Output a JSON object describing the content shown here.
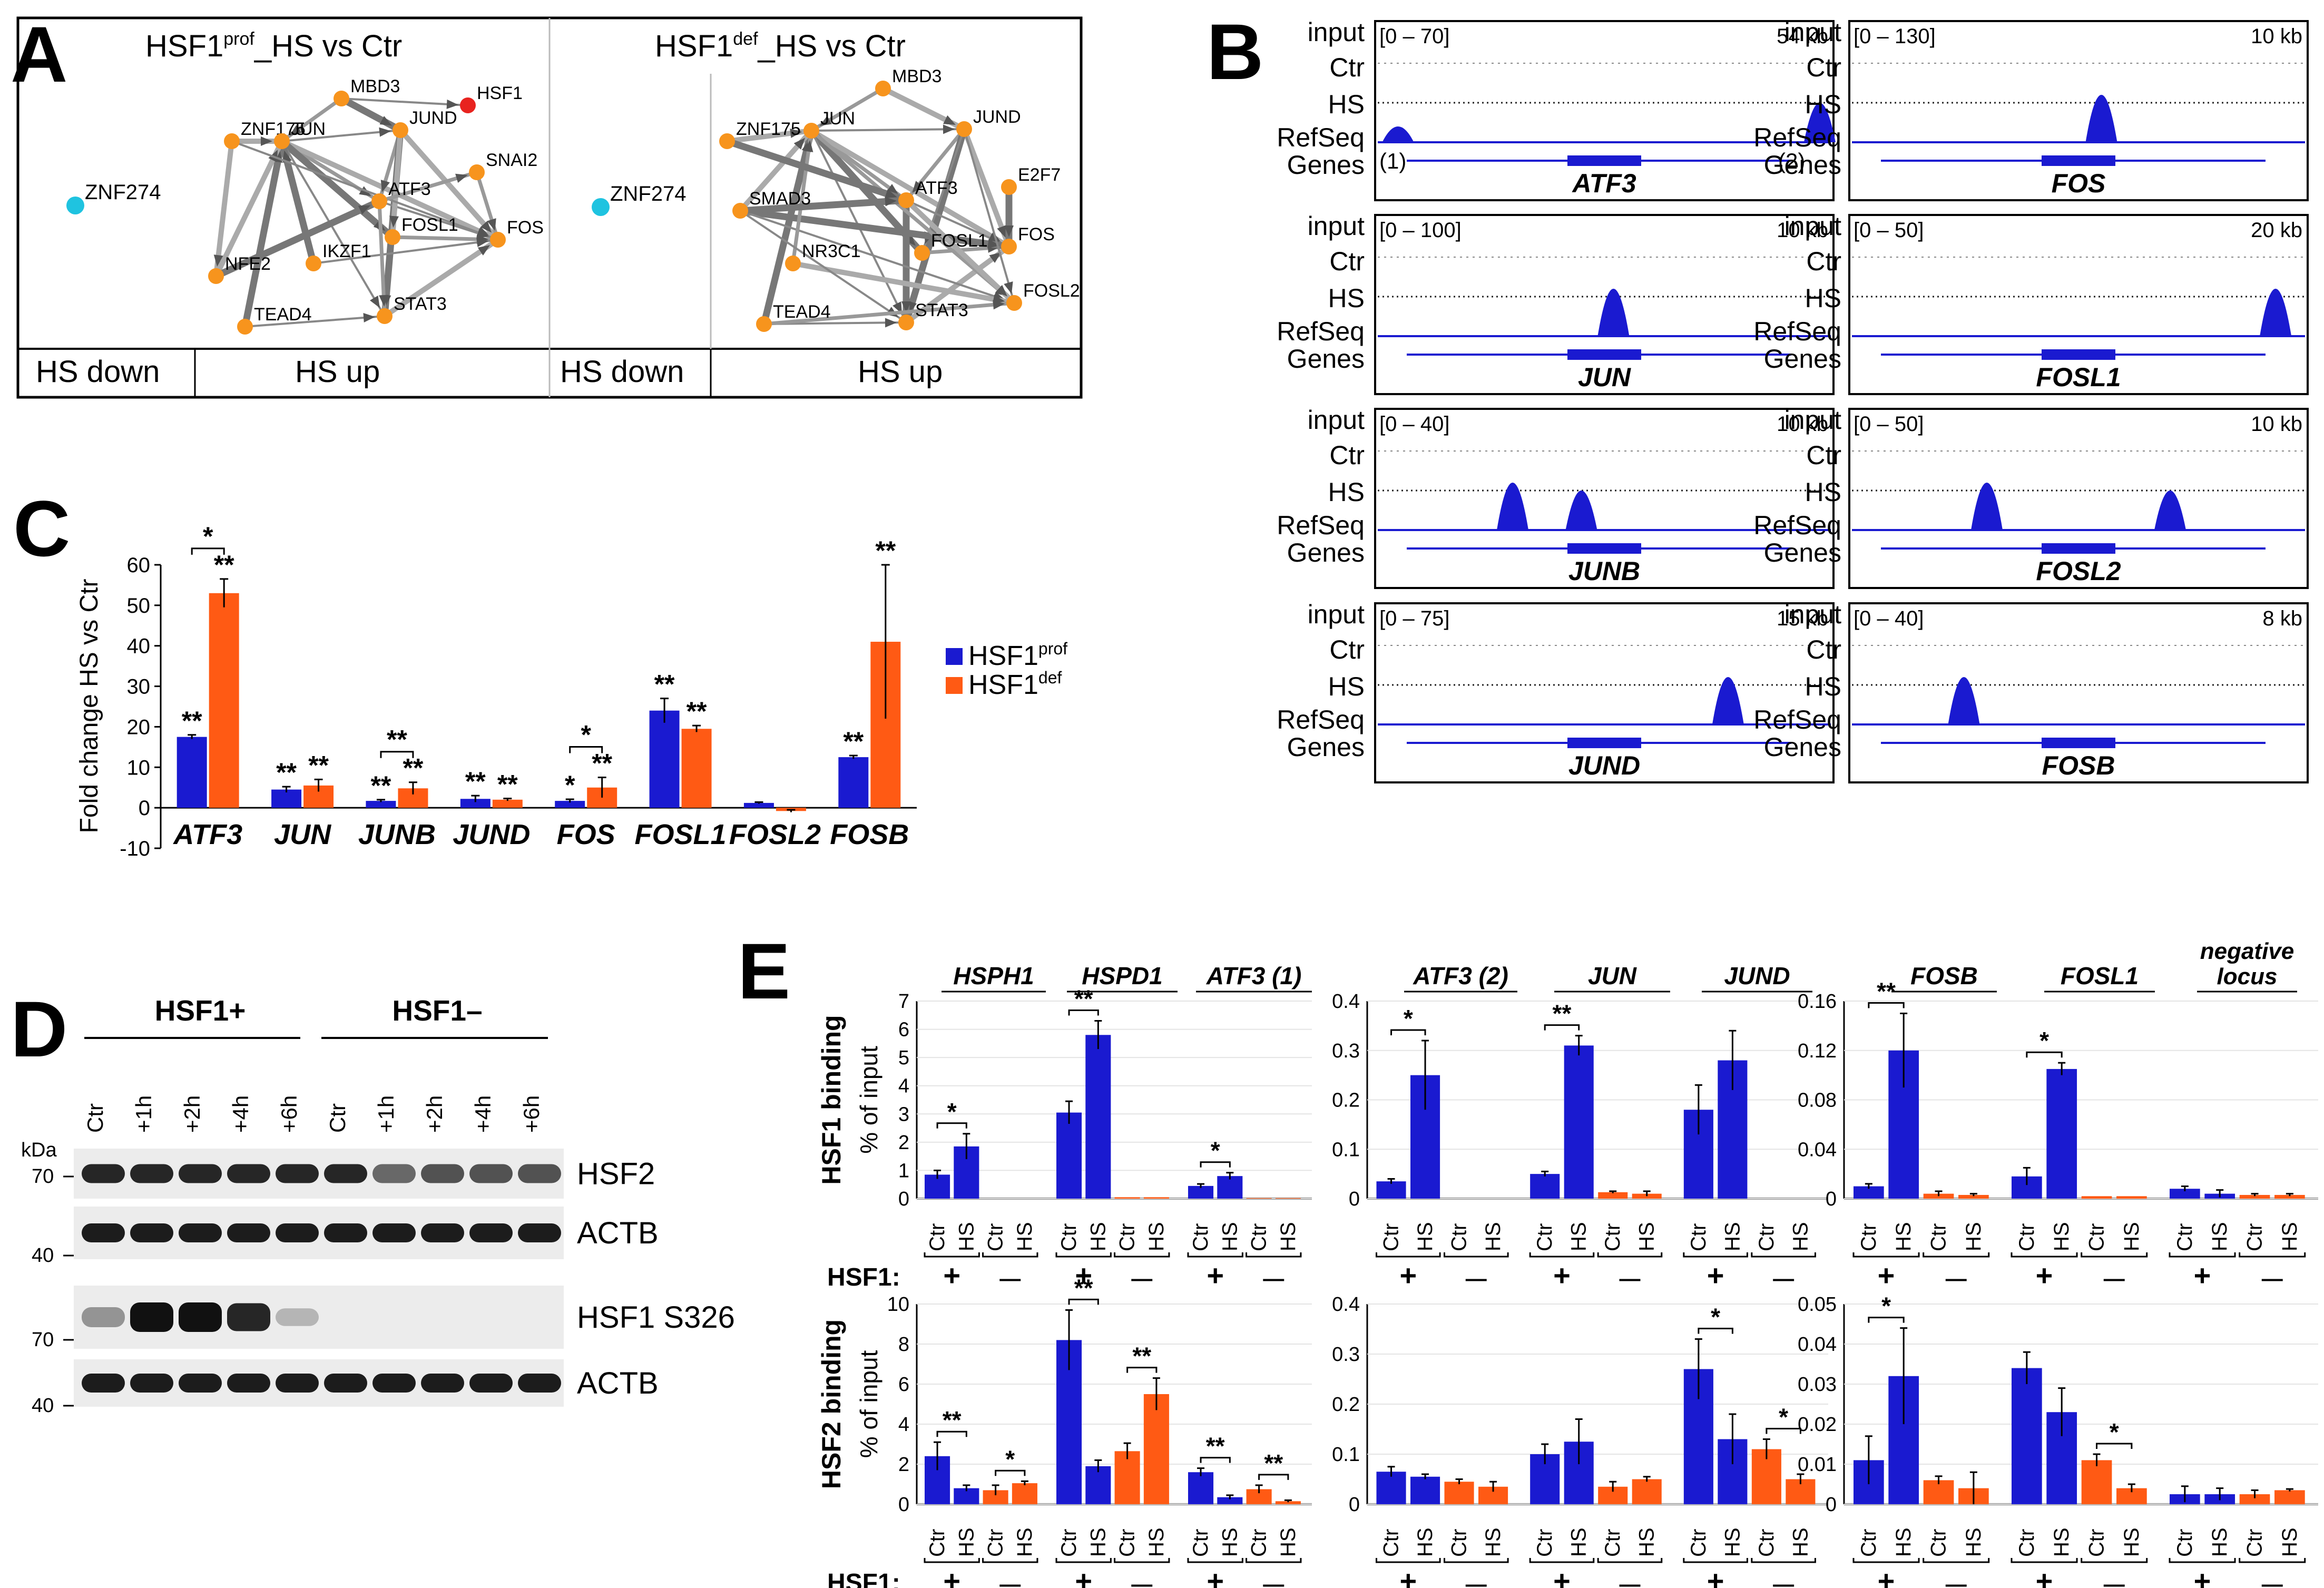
{
  "colors": {
    "blue": "#1a1ad0",
    "orange": "#ff5a14",
    "node": "#f7941d",
    "node_hsf1": "#e8231f",
    "node_down": "#1fc3e0",
    "track": "#1a1ad0"
  },
  "panelA": {
    "letter": "A",
    "left": {
      "title_base": "HSF1",
      "title_sup": "prof",
      "title_tail": "_HS vs Ctr"
    },
    "right": {
      "title_base": "HSF1",
      "title_sup": "def",
      "title_tail": "_HS vs Ctr"
    },
    "footer": {
      "down": "HS down",
      "up": "HS up"
    },
    "nodes_left": [
      "MBD3",
      "HSF1",
      "ZNF175",
      "JUN",
      "JUND",
      "SNAI2",
      "ATF3",
      "FOSL1",
      "FOS",
      "NFE2",
      "IKZF1",
      "TEAD4",
      "STAT3"
    ],
    "nodes_right": [
      "MBD3",
      "ZNF175",
      "JUN",
      "JUND",
      "E2F7",
      "SMAD3",
      "ATF3",
      "FOSL1",
      "FOS",
      "NR3C1",
      "FOSL2",
      "TEAD4",
      "STAT3"
    ],
    "down_node": "ZNF274"
  },
  "panelB": {
    "letter": "B",
    "track_labels": [
      "input",
      "Ctr",
      "HS",
      "RefSeq",
      "Genes"
    ],
    "loci": [
      {
        "gene": "ATF3",
        "range": "[0 – 70]",
        "size": "54 kb"
      },
      {
        "gene": "FOS",
        "range": "[0 – 130]",
        "size": "10 kb"
      },
      {
        "gene": "JUN",
        "range": "[0 – 100]",
        "size": "10 kb"
      },
      {
        "gene": "FOSL1",
        "range": "[0 – 50]",
        "size": "20 kb"
      },
      {
        "gene": "JUNB",
        "range": "[0 – 40]",
        "size": "10 kb"
      },
      {
        "gene": "FOSL2",
        "range": "[0 – 50]",
        "size": "10 kb"
      },
      {
        "gene": "JUND",
        "range": "[0 – 75]",
        "size": "15 kb"
      },
      {
        "gene": "FOSB",
        "range": "[0 – 40]",
        "size": "8 kb"
      }
    ],
    "atf3_sites": [
      "(1)",
      "(2)"
    ]
  },
  "panelC": {
    "letter": "C",
    "chart_data": {
      "type": "bar",
      "ylabel": "Fold change HS vs Ctr",
      "ylim": [
        -10,
        60
      ],
      "yticks": [
        -10,
        0,
        10,
        20,
        30,
        40,
        50,
        60
      ],
      "categories": [
        "ATF3",
        "JUN",
        "JUNB",
        "JUND",
        "FOS",
        "FOSL1",
        "FOSL2",
        "FOSB"
      ],
      "series": [
        {
          "name": "HSF1",
          "sup": "prof",
          "values": [
            17.5,
            4.5,
            1.7,
            2.2,
            1.7,
            24,
            1.2,
            12.5
          ],
          "errors": [
            0.5,
            0.7,
            0.3,
            0.8,
            0.4,
            3,
            0.2,
            0.4
          ],
          "stars": [
            "**",
            "**",
            "**",
            "**",
            "*",
            "**",
            "",
            "**"
          ]
        },
        {
          "name": "HSF1",
          "sup": "def",
          "values": [
            53,
            5.5,
            4.8,
            2,
            5,
            19.5,
            -0.8,
            41
          ],
          "errors": [
            3.5,
            1.5,
            1.5,
            0.3,
            2.5,
            0.8,
            0.3,
            19
          ],
          "stars": [
            "**",
            "**",
            "**",
            "**",
            "**",
            "**",
            "",
            "**"
          ]
        }
      ],
      "brackets": [
        {
          "category": "ATF3",
          "label": "*"
        },
        {
          "category": "JUNB",
          "label": "**"
        },
        {
          "category": "FOS",
          "label": "*"
        }
      ]
    }
  },
  "panelD": {
    "letter": "D",
    "groups": [
      "HSF1+",
      "HSF1–"
    ],
    "lanes": [
      "Ctr",
      "+1h",
      "+2h",
      "+4h",
      "+6h",
      "Ctr",
      "+1h",
      "+2h",
      "+4h",
      "+6h"
    ],
    "kda_label": "kDa",
    "markers": [
      "70",
      "40",
      "70",
      "40"
    ],
    "blots": [
      "HSF2",
      "ACTB",
      "HSF1 S326",
      "ACTB"
    ]
  },
  "panelE": {
    "letter": "E",
    "row_labels": [
      {
        "title": "HSF1 binding",
        "sub": "% of input"
      },
      {
        "title": "HSF2 binding",
        "sub": "% of input"
      }
    ],
    "genes": [
      "HSPH1",
      "HSPD1",
      "ATF3 (1)",
      "ATF3 (2)",
      "JUN",
      "JUND",
      "FOSB",
      "FOSL1"
    ],
    "negative_locus": [
      "negative",
      "locus"
    ],
    "bar_labels": [
      "Ctr",
      "HS"
    ],
    "hsf1_label": "HSF1:",
    "plus": "+",
    "minus": "—",
    "chart_data": [
      {
        "type": "bar",
        "panel": "HSF1 binding 1",
        "ylim": [
          0,
          7
        ],
        "yticks": [
          0,
          1,
          2,
          3,
          4,
          5,
          6,
          7
        ],
        "genes": [
          "HSPH1",
          "HSPD1",
          "ATF3 (1)"
        ],
        "values": [
          [
            0.85,
            1.85,
            0,
            0
          ],
          [
            3.05,
            5.8,
            0.05,
            0.05
          ],
          [
            0.45,
            0.8,
            0.02,
            0.02
          ]
        ],
        "errors": [
          [
            0.15,
            0.45,
            0,
            0
          ],
          [
            0.4,
            0.5,
            0,
            0
          ],
          [
            0.07,
            0.12,
            0,
            0
          ]
        ],
        "sig": [
          "*",
          "**",
          "*"
        ]
      },
      {
        "type": "bar",
        "panel": "HSF1 binding 2",
        "ylim": [
          0,
          0.4
        ],
        "yticks": [
          0,
          0.1,
          0.2,
          0.3,
          0.4
        ],
        "genes": [
          "ATF3 (2)",
          "JUN",
          "JUND"
        ],
        "values": [
          [
            0.035,
            0.25,
            0,
            0
          ],
          [
            0.05,
            0.31,
            0.013,
            0.01
          ],
          [
            0.18,
            0.28,
            0,
            0
          ]
        ],
        "errors": [
          [
            0.005,
            0.07,
            0,
            0
          ],
          [
            0.005,
            0.02,
            0.002,
            0.005
          ],
          [
            0.05,
            0.06,
            0,
            0
          ]
        ],
        "sig": [
          "*",
          "**",
          ""
        ]
      },
      {
        "type": "bar",
        "panel": "HSF1 binding 3",
        "ylim": [
          0,
          0.16
        ],
        "yticks": [
          0,
          0.04,
          0.08,
          0.12,
          0.16
        ],
        "genes": [
          "FOSB",
          "FOSL1",
          "negative locus"
        ],
        "values": [
          [
            0.01,
            0.12,
            0.004,
            0.003
          ],
          [
            0.018,
            0.105,
            0.002,
            0.002
          ],
          [
            0.008,
            0.004,
            0.003,
            0.003
          ]
        ],
        "errors": [
          [
            0.002,
            0.03,
            0.002,
            0.001
          ],
          [
            0.007,
            0.005,
            0,
            0
          ],
          [
            0.002,
            0.003,
            0.001,
            0.001
          ]
        ],
        "sig": [
          "**",
          "*",
          ""
        ]
      },
      {
        "type": "bar",
        "panel": "HSF2 binding 1",
        "ylim": [
          0,
          10
        ],
        "yticks": [
          0,
          2,
          4,
          6,
          8,
          10
        ],
        "genes": [
          "HSPH1",
          "HSPD1",
          "ATF3 (1)"
        ],
        "values": [
          [
            2.4,
            0.8,
            0.7,
            1.05
          ],
          [
            8.2,
            1.9,
            2.65,
            5.5
          ],
          [
            1.6,
            0.35,
            0.75,
            0.15
          ]
        ],
        "errors": [
          [
            0.7,
            0.15,
            0.25,
            0.1
          ],
          [
            1.5,
            0.3,
            0.4,
            0.8
          ],
          [
            0.2,
            0.1,
            0.2,
            0.05
          ]
        ],
        "sig": [
          "**",
          "**",
          "**"
        ],
        "sig2": [
          "*",
          "**",
          "**"
        ]
      },
      {
        "type": "bar",
        "panel": "HSF2 binding 2",
        "ylim": [
          0,
          0.4
        ],
        "yticks": [
          0,
          0.1,
          0.2,
          0.3,
          0.4
        ],
        "genes": [
          "ATF3 (2)",
          "JUN",
          "JUND"
        ],
        "values": [
          [
            0.065,
            0.055,
            0.045,
            0.035
          ],
          [
            0.1,
            0.125,
            0.035,
            0.05
          ],
          [
            0.27,
            0.13,
            0.11,
            0.05
          ]
        ],
        "errors": [
          [
            0.01,
            0.005,
            0.005,
            0.01
          ],
          [
            0.02,
            0.045,
            0.01,
            0.005
          ],
          [
            0.06,
            0.05,
            0.02,
            0.01
          ]
        ],
        "sig": [
          "",
          "",
          "*"
        ],
        "sig2": [
          "",
          "",
          "*"
        ]
      },
      {
        "type": "bar",
        "panel": "HSF2 binding 3",
        "ylim": [
          0,
          0.05
        ],
        "yticks": [
          0,
          0.01,
          0.02,
          0.03,
          0.04,
          0.05
        ],
        "genes": [
          "FOSB",
          "FOSL1",
          "negative locus"
        ],
        "values": [
          [
            0.011,
            0.032,
            0.006,
            0.004
          ],
          [
            0.034,
            0.023,
            0.011,
            0.004
          ],
          [
            0.0025,
            0.0025,
            0.0025,
            0.0035
          ]
        ],
        "errors": [
          [
            0.006,
            0.012,
            0.001,
            0.004
          ],
          [
            0.004,
            0.006,
            0.0015,
            0.001
          ],
          [
            0.002,
            0.0015,
            0.001,
            0.0003
          ]
        ],
        "sig": [
          "*",
          "",
          ""
        ],
        "sig2": [
          "",
          "*",
          ""
        ]
      }
    ]
  }
}
